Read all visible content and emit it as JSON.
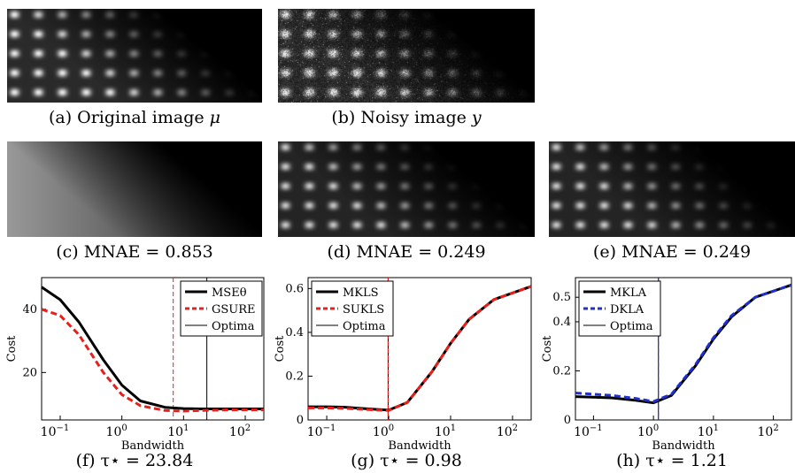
{
  "captions": {
    "a": {
      "text": "(a) Original image ",
      "math": "μ"
    },
    "b": {
      "text": "(b) Noisy image ",
      "math": "y"
    },
    "c": {
      "text": "(c) MNAE = 0.853"
    },
    "d": {
      "text": "(d) MNAE = 0.249"
    },
    "e": {
      "text": "(e) MNAE = 0.249"
    },
    "f": {
      "text": "(f) τ⋆ = 23.84"
    },
    "g": {
      "text": "(g) τ⋆ = 0.98"
    },
    "h": {
      "text": "(h) τ⋆ = 1.21"
    }
  },
  "chart_data": [
    {
      "type": "line",
      "xlabel": "Bandwidth",
      "ylabel": "Cost",
      "xscale": "log",
      "xlim": [
        0.05,
        200
      ],
      "ylim": [
        5,
        50
      ],
      "xticks": [
        {
          "v": 0.1,
          "b": "10",
          "e": "−1"
        },
        {
          "v": 1,
          "b": "10",
          "e": "0"
        },
        {
          "v": 10,
          "b": "10",
          "e": "1"
        },
        {
          "v": 100,
          "b": "10",
          "e": "2"
        }
      ],
      "yticks": [
        {
          "v": 20,
          "label": "20"
        },
        {
          "v": 40,
          "label": "40"
        }
      ],
      "legend_position": "top-right",
      "series": [
        {
          "name": "MSEθ",
          "color": "#000000",
          "dash": "solid",
          "width": 3,
          "x": [
            0.05,
            0.1,
            0.2,
            0.5,
            1,
            2,
            5,
            10,
            20,
            50,
            200
          ],
          "y": [
            47,
            43,
            36,
            24,
            16,
            11,
            9,
            8.6,
            8.5,
            8.5,
            8.5
          ]
        },
        {
          "name": "GSURE",
          "color": "#e8201c",
          "dash": "dashed",
          "width": 3,
          "x": [
            0.05,
            0.1,
            0.2,
            0.5,
            1,
            2,
            5,
            10,
            20,
            50,
            200
          ],
          "y": [
            40,
            38,
            32,
            20,
            13,
            9.5,
            8,
            7.8,
            8,
            8.2,
            8.2
          ]
        }
      ],
      "optima": [
        {
          "label": "Optima",
          "x": 23.84,
          "color": "#000000"
        },
        {
          "x": 6.8,
          "color": "#e8201c",
          "dash": "dashed"
        }
      ]
    },
    {
      "type": "line",
      "xlabel": "Bandwidth",
      "ylabel": "Cost",
      "xscale": "log",
      "xlim": [
        0.05,
        200
      ],
      "ylim": [
        0.0,
        0.65
      ],
      "xticks": [
        {
          "v": 0.1,
          "b": "10",
          "e": "−1"
        },
        {
          "v": 1,
          "b": "10",
          "e": "0"
        },
        {
          "v": 10,
          "b": "10",
          "e": "1"
        },
        {
          "v": 100,
          "b": "10",
          "e": "2"
        }
      ],
      "yticks": [
        {
          "v": 0,
          "label": "0"
        },
        {
          "v": 0.2,
          "label": "0.2"
        },
        {
          "v": 0.4,
          "label": "0.4"
        },
        {
          "v": 0.6,
          "label": "0.6"
        }
      ],
      "legend_position": "top-left",
      "series": [
        {
          "name": "MKLS",
          "color": "#000000",
          "dash": "solid",
          "width": 3,
          "x": [
            0.05,
            0.1,
            0.2,
            0.5,
            1,
            2,
            5,
            10,
            20,
            50,
            200
          ],
          "y": [
            0.06,
            0.06,
            0.058,
            0.05,
            0.045,
            0.08,
            0.22,
            0.35,
            0.46,
            0.55,
            0.61
          ]
        },
        {
          "name": "SUKLS",
          "color": "#e8201c",
          "dash": "dashed",
          "width": 3,
          "x": [
            0.05,
            0.1,
            0.2,
            0.5,
            1,
            2,
            5,
            10,
            20,
            50,
            200
          ],
          "y": [
            0.055,
            0.055,
            0.053,
            0.047,
            0.043,
            0.08,
            0.22,
            0.35,
            0.46,
            0.55,
            0.61
          ]
        }
      ],
      "optima": [
        {
          "label": "Optima",
          "x": 0.98,
          "color": "#000000"
        },
        {
          "x": 0.98,
          "color": "#e8201c",
          "dash": "dashed"
        }
      ]
    },
    {
      "type": "line",
      "xlabel": "Bandwidth",
      "ylabel": "Cost",
      "xscale": "log",
      "xlim": [
        0.05,
        200
      ],
      "ylim": [
        0.0,
        0.58
      ],
      "xticks": [
        {
          "v": 0.1,
          "b": "10",
          "e": "−1"
        },
        {
          "v": 1,
          "b": "10",
          "e": "0"
        },
        {
          "v": 10,
          "b": "10",
          "e": "1"
        },
        {
          "v": 100,
          "b": "10",
          "e": "2"
        }
      ],
      "yticks": [
        {
          "v": 0,
          "label": "0"
        },
        {
          "v": 0.2,
          "label": "0.2"
        },
        {
          "v": 0.4,
          "label": "0.4"
        },
        {
          "v": 0.5,
          "label": "0.5"
        }
      ],
      "legend_position": "top-left",
      "series": [
        {
          "name": "MKLA",
          "color": "#000000",
          "dash": "solid",
          "width": 3,
          "x": [
            0.05,
            0.1,
            0.2,
            0.5,
            1,
            2,
            5,
            10,
            20,
            50,
            200
          ],
          "y": [
            0.095,
            0.093,
            0.09,
            0.08,
            0.07,
            0.1,
            0.22,
            0.33,
            0.42,
            0.5,
            0.55
          ]
        },
        {
          "name": "DKLA",
          "color": "#1f2fd0",
          "dash": "dashed",
          "width": 3,
          "x": [
            0.05,
            0.1,
            0.2,
            0.5,
            1,
            2,
            5,
            10,
            20,
            50,
            200
          ],
          "y": [
            0.11,
            0.105,
            0.1,
            0.088,
            0.075,
            0.105,
            0.225,
            0.335,
            0.425,
            0.5,
            0.55
          ]
        }
      ],
      "optima": [
        {
          "label": "Optima",
          "x": 1.21,
          "color": "#000000"
        },
        {
          "x": 1.21,
          "color": "#1f2fd0",
          "dash": "dashed"
        }
      ]
    }
  ]
}
